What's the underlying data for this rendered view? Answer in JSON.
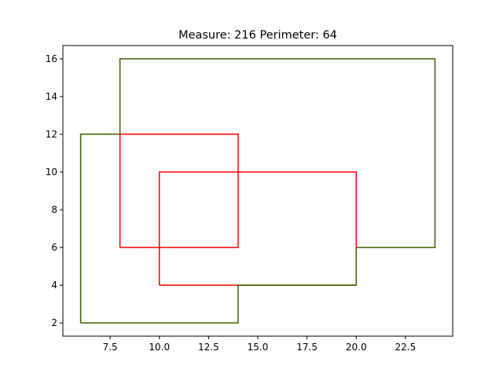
{
  "chart_data": {
    "type": "line",
    "title": "Measure: 216 Perimeter: 64",
    "xlabel": "",
    "ylabel": "",
    "xlim": [
      5.1,
      24.9
    ],
    "ylim": [
      1.3,
      16.7
    ],
    "grid": false,
    "x_ticks": [
      7.5,
      10.0,
      12.5,
      15.0,
      17.5,
      20.0,
      22.5
    ],
    "x_tick_labels": [
      "7.5",
      "10.0",
      "12.5",
      "15.0",
      "17.5",
      "20.0",
      "22.5"
    ],
    "y_ticks": [
      2,
      4,
      6,
      8,
      10,
      12,
      14,
      16
    ],
    "y_tick_labels": [
      "2",
      "4",
      "6",
      "8",
      "10",
      "12",
      "14",
      "16"
    ],
    "series": [
      {
        "color": "#ff0000",
        "points": [
          [
            8,
            6
          ],
          [
            8,
            12
          ],
          [
            14,
            12
          ],
          [
            14,
            6
          ],
          [
            8,
            6
          ]
        ]
      },
      {
        "color": "#ff0000",
        "points": [
          [
            10,
            4
          ],
          [
            10,
            10
          ],
          [
            20,
            10
          ],
          [
            20,
            4
          ],
          [
            10,
            4
          ]
        ]
      },
      {
        "color": "#3a5f00",
        "points": [
          [
            6,
            2
          ],
          [
            6,
            12
          ],
          [
            8,
            12
          ],
          [
            8,
            16
          ],
          [
            24,
            16
          ],
          [
            24,
            6
          ],
          [
            20,
            6
          ],
          [
            20,
            4
          ],
          [
            14,
            4
          ],
          [
            14,
            2
          ],
          [
            6,
            2
          ]
        ]
      }
    ]
  }
}
